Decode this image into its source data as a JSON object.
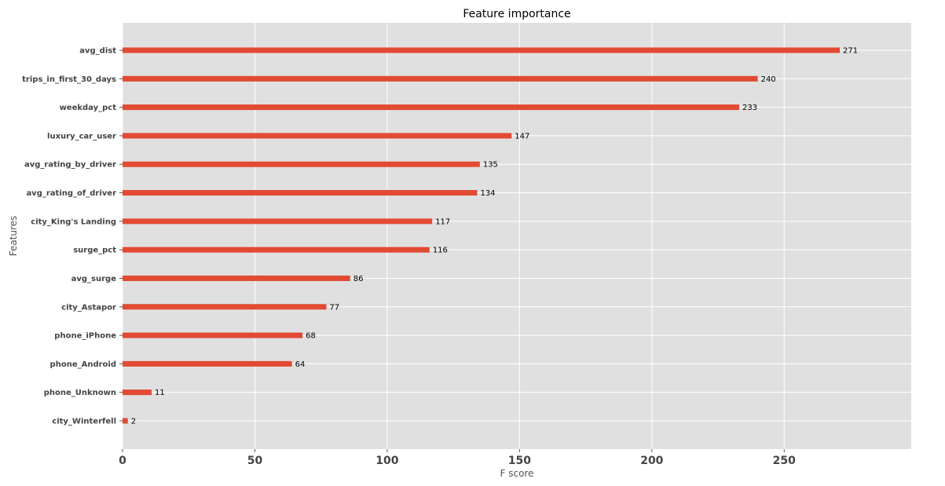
{
  "chart_data": {
    "type": "bar",
    "orientation": "horizontal",
    "title": "Feature importance",
    "xlabel": "F score",
    "ylabel": "Features",
    "xlim": [
      0,
      298
    ],
    "xticks": [
      0,
      50,
      100,
      150,
      200,
      250
    ],
    "grid": true,
    "bar_color": "#e24a33",
    "background_color": "#e0e0e0",
    "categories": [
      "avg_dist",
      "trips_in_first_30_days",
      "weekday_pct",
      "luxury_car_user",
      "avg_rating_by_driver",
      "avg_rating_of_driver",
      "city_King's Landing",
      "surge_pct",
      "avg_surge",
      "city_Astapor",
      "phone_iPhone",
      "phone_Android",
      "phone_Unknown",
      "city_Winterfell"
    ],
    "values": [
      271,
      240,
      233,
      147,
      135,
      134,
      117,
      116,
      86,
      77,
      68,
      64,
      11,
      2
    ]
  }
}
